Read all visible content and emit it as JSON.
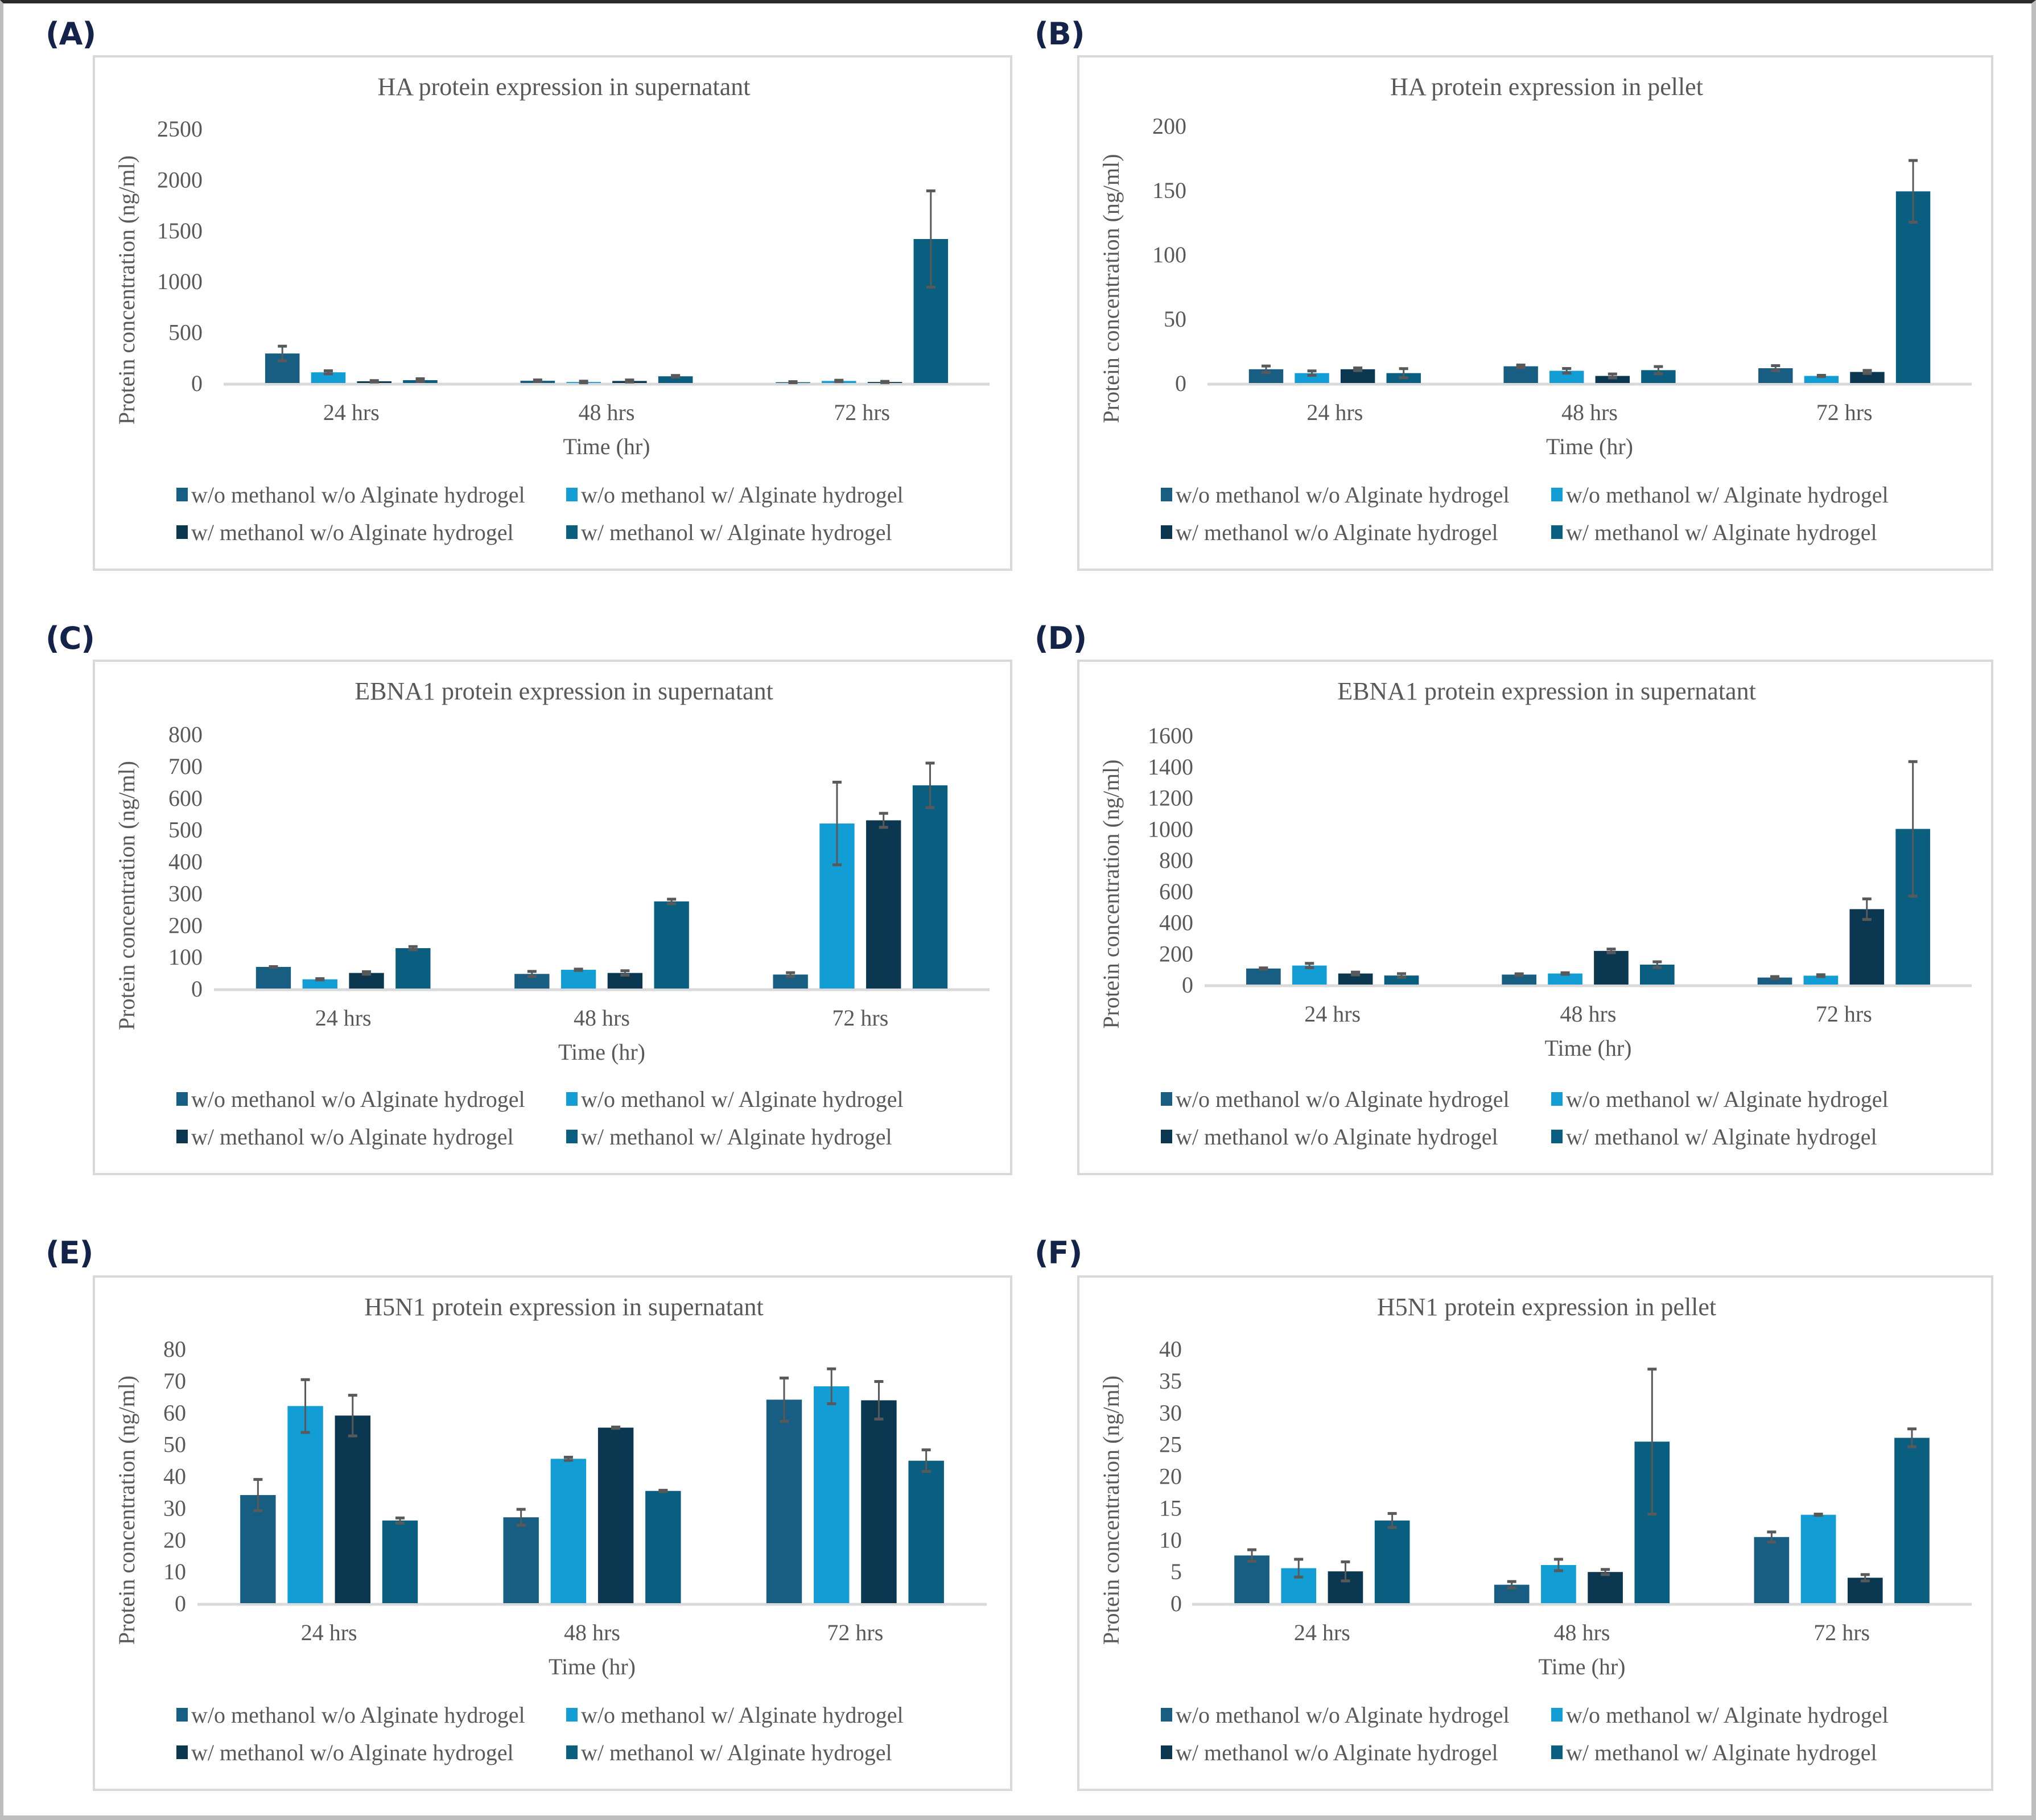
{
  "figure": {
    "panels": [
      {
        "label": "(A)"
      },
      {
        "label": "(B)"
      },
      {
        "label": "(C)"
      },
      {
        "label": "(D)"
      },
      {
        "label": "(E)"
      },
      {
        "label": "(F)"
      }
    ]
  },
  "legend": {
    "series": [
      {
        "name": "w/o methanol w/o Alginate hydrogel",
        "color": "#175e82"
      },
      {
        "name": "w/o methanol w/ Alginate hydrogel",
        "color": "#129dd4"
      },
      {
        "name": "w/ methanol w/o Alginate hydrogel",
        "color": "#0c3750"
      },
      {
        "name": "w/ methanol w/ Alginate hydrogel",
        "color": "#0a5f80"
      }
    ]
  },
  "chart_data": [
    {
      "panel": "(A)",
      "type": "bar",
      "title": "HA protein expression in supernatant",
      "xlabel": "Time (hr)",
      "ylabel": "Protein concentration (ng/ml)",
      "categories": [
        "24 hrs",
        "48 hrs",
        "72 hrs"
      ],
      "ylim": [
        0,
        2500
      ],
      "yticks": [
        0,
        500,
        1000,
        1500,
        2000,
        2500
      ],
      "legend_position": "bottom",
      "grid": false,
      "series": [
        {
          "name": "w/o methanol w/o Alginate hydrogel",
          "values": [
            290,
            22,
            8
          ],
          "errors": [
            72,
            8,
            5
          ]
        },
        {
          "name": "w/o methanol w/ Alginate hydrogel",
          "values": [
            105,
            10,
            20
          ],
          "errors": [
            15,
            8,
            7
          ]
        },
        {
          "name": "w/ methanol w/o Alginate hydrogel",
          "values": [
            17,
            20,
            10
          ],
          "errors": [
            7,
            10,
            6
          ]
        },
        {
          "name": "w/ methanol w/ Alginate hydrogel",
          "values": [
            28,
            66,
            1415
          ],
          "errors": [
            14,
            8,
            473
          ]
        }
      ]
    },
    {
      "panel": "(B)",
      "type": "bar",
      "title": "HA protein expression in pellet",
      "xlabel": "Time (hr)",
      "ylabel": "Protein concentration (ng/ml)",
      "categories": [
        "24 hrs",
        "48 hrs",
        "72 hrs"
      ],
      "ylim": [
        0,
        200
      ],
      "yticks": [
        0,
        50,
        100,
        150,
        200
      ],
      "legend_position": "bottom",
      "grid": false,
      "series": [
        {
          "name": "w/o methanol w/o Alginate hydrogel",
          "values": [
            10.7,
            13.0,
            11.5
          ],
          "errors": [
            2.5,
            1.0,
            2.0
          ]
        },
        {
          "name": "w/o methanol w/ Alginate hydrogel",
          "values": [
            7.7,
            9.5,
            5.5
          ],
          "errors": [
            1.7,
            1.8,
            0.5
          ]
        },
        {
          "name": "w/ methanol w/o Alginate hydrogel",
          "values": [
            10.7,
            5.5,
            8.6
          ],
          "errors": [
            1.0,
            1.5,
            1.2
          ]
        },
        {
          "name": "w/ methanol w/ Alginate hydrogel",
          "values": [
            7.7,
            10.0,
            149.0
          ],
          "errors": [
            3.5,
            2.8,
            24.0
          ]
        }
      ]
    },
    {
      "panel": "(C)",
      "type": "bar",
      "title": "EBNA1 protein expression in supernatant",
      "xlabel": "Time (hr)",
      "ylabel": "Protein concentration (ng/ml)",
      "categories": [
        "24 hrs",
        "48 hrs",
        "72 hrs"
      ],
      "ylim": [
        0,
        800
      ],
      "yticks": [
        0,
        100,
        200,
        300,
        400,
        500,
        600,
        700,
        800
      ],
      "legend_position": "bottom",
      "grid": false,
      "series": [
        {
          "name": "w/o methanol w/o Alginate hydrogel",
          "values": [
            68,
            46,
            44
          ],
          "errors": [
            1,
            8,
            6
          ]
        },
        {
          "name": "w/o methanol w/ Alginate hydrogel",
          "values": [
            29,
            59,
            519
          ],
          "errors": [
            2,
            2,
            130
          ]
        },
        {
          "name": "w/ methanol w/o Alginate hydrogel",
          "values": [
            49,
            49,
            529
          ],
          "errors": [
            4,
            7,
            22
          ]
        },
        {
          "name": "w/ methanol w/ Alginate hydrogel",
          "values": [
            127,
            274,
            639
          ],
          "errors": [
            5,
            7,
            70
          ]
        }
      ]
    },
    {
      "panel": "(D)",
      "type": "bar",
      "title": "EBNA1 protein expression in supernatant",
      "xlabel": "Time (hr)",
      "ylabel": "Protein concentration (ng/ml)",
      "categories": [
        "24 hrs",
        "48 hrs",
        "72 hrs"
      ],
      "ylim": [
        0,
        1600
      ],
      "yticks": [
        0,
        200,
        400,
        600,
        800,
        1000,
        1200,
        1400,
        1600
      ],
      "legend_position": "bottom",
      "grid": false,
      "series": [
        {
          "name": "w/o methanol w/o Alginate hydrogel",
          "values": [
            103,
            64,
            45
          ],
          "errors": [
            4,
            5,
            6
          ]
        },
        {
          "name": "w/o methanol w/ Alginate hydrogel",
          "values": [
            122,
            71,
            57
          ],
          "errors": [
            14,
            5,
            6
          ]
        },
        {
          "name": "w/ methanol w/o Alginate hydrogel",
          "values": [
            71,
            216,
            484
          ],
          "errors": [
            9,
            12,
            66
          ]
        },
        {
          "name": "w/ methanol w/ Alginate hydrogel",
          "values": [
            58,
            128,
            999
          ],
          "errors": [
            12,
            18,
            432
          ]
        }
      ]
    },
    {
      "panel": "(E)",
      "type": "bar",
      "title": "H5N1 protein expression in supernatant",
      "xlabel": "Time (hr)",
      "ylabel": "Protein concentration (ng/ml)",
      "categories": [
        "24 hrs",
        "48 hrs",
        "72 hrs"
      ],
      "ylim": [
        0,
        80
      ],
      "yticks": [
        0,
        10,
        20,
        30,
        40,
        50,
        60,
        70,
        80
      ],
      "legend_position": "bottom",
      "grid": false,
      "series": [
        {
          "name": "w/o methanol w/o Alginate hydrogel",
          "values": [
            34.0,
            27.0,
            64.0
          ],
          "errors": [
            4.9,
            2.5,
            6.8
          ]
        },
        {
          "name": "w/o methanol w/ Alginate hydrogel",
          "values": [
            62.0,
            45.4,
            68.2
          ],
          "errors": [
            8.3,
            0.5,
            5.5
          ]
        },
        {
          "name": "w/ methanol w/o Alginate hydrogel",
          "values": [
            59.0,
            55.2,
            63.8
          ],
          "errors": [
            6.4,
            0.2,
            5.9
          ]
        },
        {
          "name": "w/ methanol w/ Alginate hydrogel",
          "values": [
            26.0,
            35.3,
            44.8
          ],
          "errors": [
            0.8,
            0.2,
            3.4
          ]
        }
      ]
    },
    {
      "panel": "(F)",
      "type": "bar",
      "title": "H5N1 protein expression in pellet",
      "xlabel": "Time (hr)",
      "ylabel": "Protein concentration (ng/ml)",
      "categories": [
        "24 hrs",
        "48 hrs",
        "72 hrs"
      ],
      "ylim": [
        0,
        40
      ],
      "yticks": [
        0,
        5,
        10,
        15,
        20,
        25,
        30,
        35,
        40
      ],
      "legend_position": "bottom",
      "grid": false,
      "series": [
        {
          "name": "w/o methanol w/o Alginate hydrogel",
          "values": [
            7.5,
            2.9,
            10.4
          ],
          "errors": [
            0.9,
            0.5,
            0.8
          ]
        },
        {
          "name": "w/o methanol w/ Alginate hydrogel",
          "values": [
            5.5,
            6.0,
            13.9
          ],
          "errors": [
            1.4,
            0.9,
            0.1
          ]
        },
        {
          "name": "w/ methanol w/o Alginate hydrogel",
          "values": [
            5.0,
            4.9,
            4.0
          ],
          "errors": [
            1.5,
            0.4,
            0.5
          ]
        },
        {
          "name": "w/ methanol w/ Alginate hydrogel",
          "values": [
            13.0,
            25.4,
            26.0
          ],
          "errors": [
            1.1,
            11.4,
            1.4
          ]
        }
      ]
    }
  ]
}
